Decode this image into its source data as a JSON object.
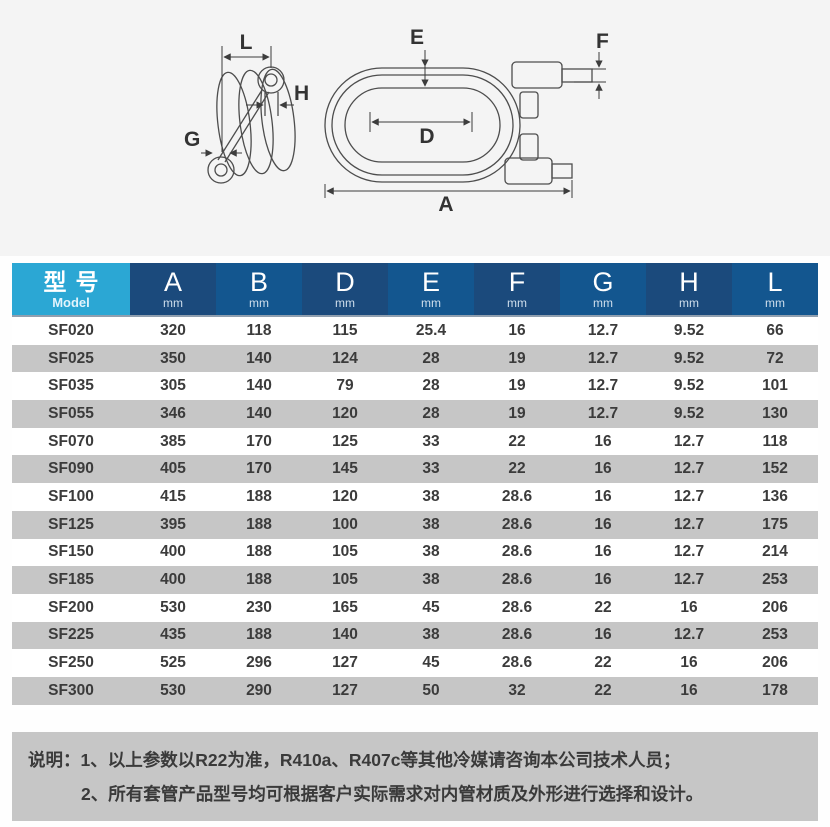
{
  "diagrams": {
    "l": "L",
    "h": "H",
    "g": "G",
    "e": "E",
    "f": "F",
    "d": "D",
    "a": "A"
  },
  "table": {
    "model_header": {
      "cn": "型号",
      "en": "Model"
    },
    "columns": [
      {
        "letter": "A",
        "unit": "mm"
      },
      {
        "letter": "B",
        "unit": "mm"
      },
      {
        "letter": "D",
        "unit": "mm"
      },
      {
        "letter": "E",
        "unit": "mm"
      },
      {
        "letter": "F",
        "unit": "mm"
      },
      {
        "letter": "G",
        "unit": "mm"
      },
      {
        "letter": "H",
        "unit": "mm"
      },
      {
        "letter": "L",
        "unit": "mm"
      }
    ],
    "rows": [
      {
        "model": "SF020",
        "values": [
          "320",
          "118",
          "115",
          "25.4",
          "16",
          "12.7",
          "9.52",
          "66"
        ]
      },
      {
        "model": "SF025",
        "values": [
          "350",
          "140",
          "124",
          "28",
          "19",
          "12.7",
          "9.52",
          "72"
        ]
      },
      {
        "model": "SF035",
        "values": [
          "305",
          "140",
          "79",
          "28",
          "19",
          "12.7",
          "9.52",
          "101"
        ]
      },
      {
        "model": "SF055",
        "values": [
          "346",
          "140",
          "120",
          "28",
          "19",
          "12.7",
          "9.52",
          "130"
        ]
      },
      {
        "model": "SF070",
        "values": [
          "385",
          "170",
          "125",
          "33",
          "22",
          "16",
          "12.7",
          "118"
        ]
      },
      {
        "model": "SF090",
        "values": [
          "405",
          "170",
          "145",
          "33",
          "22",
          "16",
          "12.7",
          "152"
        ]
      },
      {
        "model": "SF100",
        "values": [
          "415",
          "188",
          "120",
          "38",
          "28.6",
          "16",
          "12.7",
          "136"
        ]
      },
      {
        "model": "SF125",
        "values": [
          "395",
          "188",
          "100",
          "38",
          "28.6",
          "16",
          "12.7",
          "175"
        ]
      },
      {
        "model": "SF150",
        "values": [
          "400",
          "188",
          "105",
          "38",
          "28.6",
          "16",
          "12.7",
          "214"
        ]
      },
      {
        "model": "SF185",
        "values": [
          "400",
          "188",
          "105",
          "38",
          "28.6",
          "16",
          "12.7",
          "253"
        ]
      },
      {
        "model": "SF200",
        "values": [
          "530",
          "230",
          "165",
          "45",
          "28.6",
          "22",
          "16",
          "206"
        ]
      },
      {
        "model": "SF225",
        "values": [
          "435",
          "188",
          "140",
          "38",
          "28.6",
          "16",
          "12.7",
          "253"
        ]
      },
      {
        "model": "SF250",
        "values": [
          "525",
          "296",
          "127",
          "45",
          "28.6",
          "22",
          "16",
          "206"
        ]
      },
      {
        "model": "SF300",
        "values": [
          "530",
          "290",
          "127",
          "50",
          "32",
          "22",
          "16",
          "178"
        ]
      }
    ]
  },
  "notes": {
    "prefix": "说明：",
    "line1": "1、以上参数以R22为准，R410a、R407c等其他冷媒请咨询本公司技术人员；",
    "line2": "2、所有套管产品型号均可根据客户实际需求对内管材质及外形进行选择和设计。"
  },
  "colors": {
    "model_header_bg": "#2ba7d4",
    "header_dark": "#1b4a7c",
    "header_light": "#13568f",
    "row_stripe": "#c6c6c6",
    "note_bg": "#c6c6c6",
    "text_dark": "#3b3b3b"
  }
}
